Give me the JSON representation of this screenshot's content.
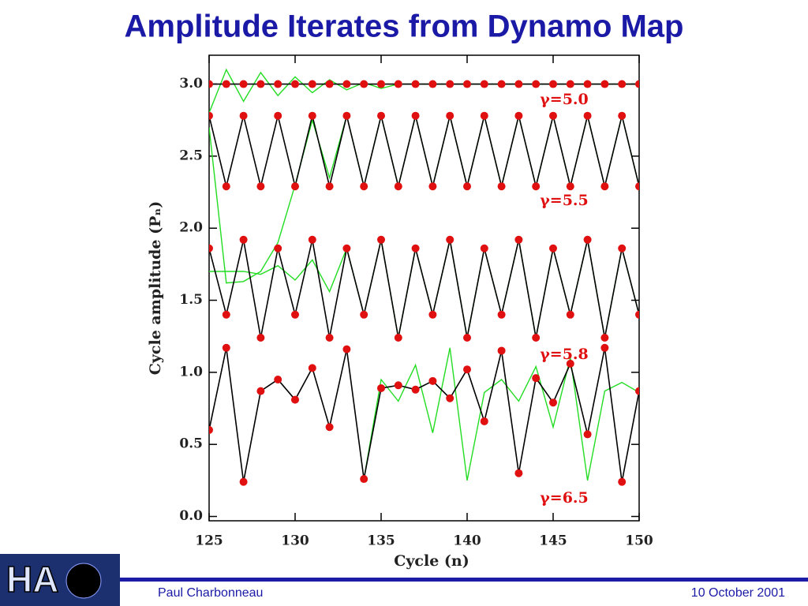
{
  "chart_data": {
    "type": "line",
    "title": "Amplitude Iterates from Dynamo Map",
    "x_label": "Cycle (n)",
    "y_label": "Cycle amplitude (Pₙ)",
    "x": [
      125,
      126,
      127,
      128,
      129,
      130,
      131,
      132,
      133,
      134,
      135,
      136,
      137,
      138,
      139,
      140,
      141,
      142,
      143,
      144,
      145,
      146,
      147,
      148,
      149,
      150
    ],
    "xlim": [
      125,
      150
    ],
    "xticks": [
      125,
      130,
      135,
      140,
      145,
      150
    ],
    "ylim": [
      -0.03,
      3.2
    ],
    "yticks": [
      {
        "value": 0,
        "label": "0.0"
      },
      {
        "value": 0.5,
        "label": "0.5"
      },
      {
        "value": 1,
        "label": "1.0"
      },
      {
        "value": 1.5,
        "label": "1.5"
      },
      {
        "value": 2,
        "label": "2.0"
      },
      {
        "value": 2.5,
        "label": "2.5"
      },
      {
        "value": 3,
        "label": "3.0"
      }
    ],
    "series": [
      {
        "name": "γ=5.0",
        "color": "#e01010",
        "line_color": "#000000",
        "markers": true,
        "values": [
          3,
          3,
          3,
          3,
          3,
          3,
          3,
          3,
          3,
          3,
          3,
          3,
          3,
          3,
          3,
          3,
          3,
          3,
          3,
          3,
          3,
          3,
          3,
          3,
          3,
          3
        ]
      },
      {
        "name": "γ=5.5",
        "color": "#e01010",
        "line_color": "#000000",
        "markers": true,
        "values": [
          2.78,
          2.29,
          2.78,
          2.29,
          2.78,
          2.29,
          2.78,
          2.29,
          2.78,
          2.29,
          2.78,
          2.29,
          2.78,
          2.29,
          2.78,
          2.29,
          2.78,
          2.29,
          2.78,
          2.29,
          2.78,
          2.29,
          2.78,
          2.29,
          2.78,
          2.29
        ]
      },
      {
        "name": "γ=5.8",
        "color": "#e01010",
        "line_color": "#000000",
        "markers": true,
        "values": [
          1.86,
          1.4,
          1.92,
          1.24,
          1.86,
          1.4,
          1.92,
          1.24,
          1.86,
          1.4,
          1.92,
          1.24,
          1.86,
          1.4,
          1.92,
          1.24,
          1.86,
          1.4,
          1.92,
          1.24,
          1.86,
          1.4,
          1.92,
          1.24,
          1.86,
          1.4
        ]
      },
      {
        "name": "γ=6.5",
        "color": "#e01010",
        "line_color": "#000000",
        "markers": true,
        "values": [
          0.6,
          1.17,
          0.24,
          0.87,
          0.95,
          0.81,
          1.03,
          0.62,
          1.16,
          0.26,
          0.89,
          0.91,
          0.88,
          0.94,
          0.82,
          1.02,
          0.66,
          1.15,
          0.3,
          0.96,
          0.79,
          1.06,
          0.57,
          1.17,
          0.24,
          0.87
        ]
      },
      {
        "color": "#22dd22",
        "markers": false,
        "values": [
          2.8,
          3.1,
          2.88,
          3.08,
          2.92,
          3.05,
          2.94,
          3.03,
          2.96,
          3.01,
          2.97,
          3,
          3,
          3,
          3,
          3,
          3,
          3,
          3,
          3,
          3,
          3,
          3,
          3,
          3,
          3
        ]
      },
      {
        "color": "#22dd22",
        "markers": false,
        "values": [
          2.7,
          1.62,
          1.63,
          1.7,
          1.9,
          2.3,
          2.75,
          2.35,
          2.78,
          2.29,
          2.78,
          2.29,
          2.78,
          2.29,
          2.78,
          2.29,
          2.78,
          2.29,
          2.78,
          2.29,
          2.78,
          2.29,
          2.78,
          2.29,
          2.78,
          2.29
        ]
      },
      {
        "color": "#22dd22",
        "markers": false,
        "values": [
          1.7,
          1.7,
          1.7,
          1.68,
          1.74,
          1.64,
          1.78,
          1.56,
          1.86,
          1.4,
          1.92,
          1.24,
          1.86,
          1.4,
          1.92,
          1.24,
          1.86,
          1.4,
          1.92,
          1.24,
          1.86,
          1.4,
          1.92,
          1.24,
          1.86,
          1.4
        ]
      },
      {
        "color": "#22dd22",
        "markers": false,
        "values": [
          null,
          null,
          null,
          null,
          null,
          null,
          null,
          null,
          null,
          0.26,
          0.95,
          0.8,
          1.05,
          0.58,
          1.17,
          0.25,
          0.86,
          0.95,
          0.8,
          1.04,
          0.62,
          1.1,
          0.25,
          0.87,
          0.93,
          0.86
        ]
      }
    ]
  },
  "footer": {
    "logo": "HA",
    "author": "Paul Charbonneau",
    "date": "10 October 2001"
  }
}
